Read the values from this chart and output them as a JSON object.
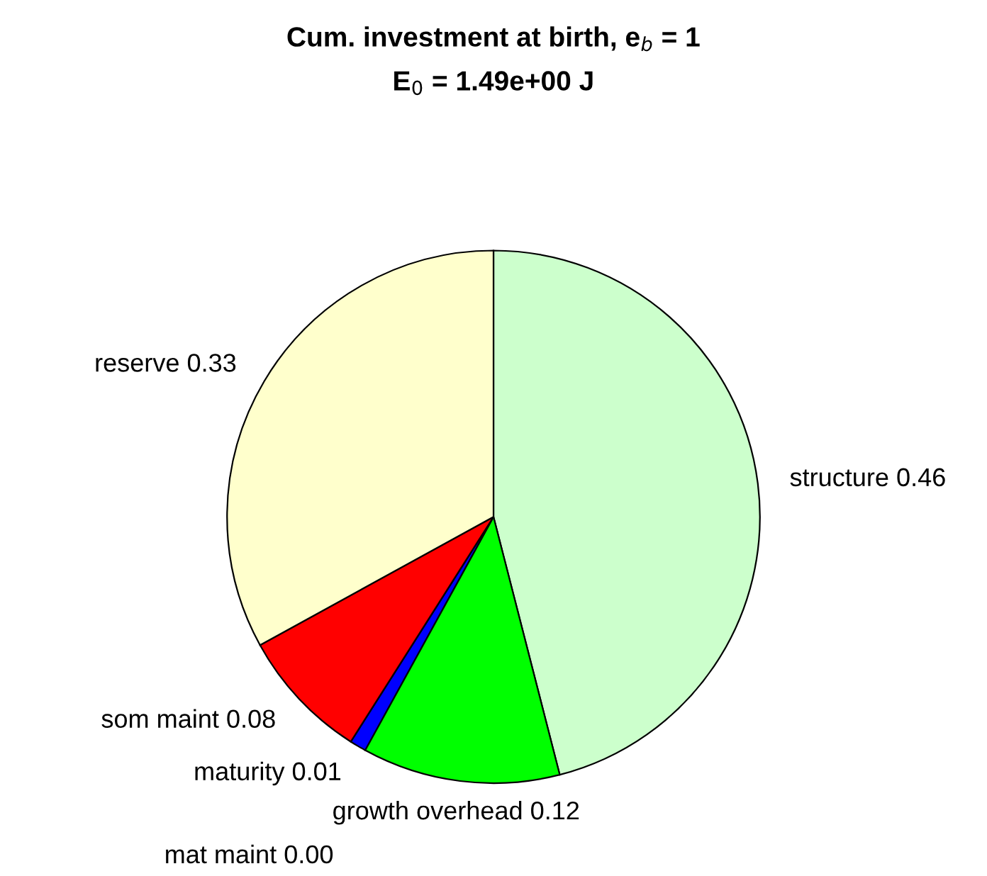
{
  "chart_data": {
    "type": "pie",
    "title": "Cum. investment at birth, e$_{b}$ = 1",
    "subtitle": "E$_{0}$ = 1.49e+00 J",
    "categories": [
      "structure",
      "growth overhead",
      "maturity",
      "mat maint",
      "som maint",
      "reserve"
    ],
    "values": [
      0.46,
      0.12,
      0.01,
      0.0,
      0.08,
      0.33
    ],
    "value_labels": [
      "0.46",
      "0.12",
      "0.01",
      "0.00",
      "0.08",
      "0.33"
    ],
    "colors": [
      "#ccffcc",
      "#00ff00",
      "#0000ff",
      "#ff00ff",
      "#ff0000",
      "#ffffcc"
    ],
    "legend": false
  }
}
